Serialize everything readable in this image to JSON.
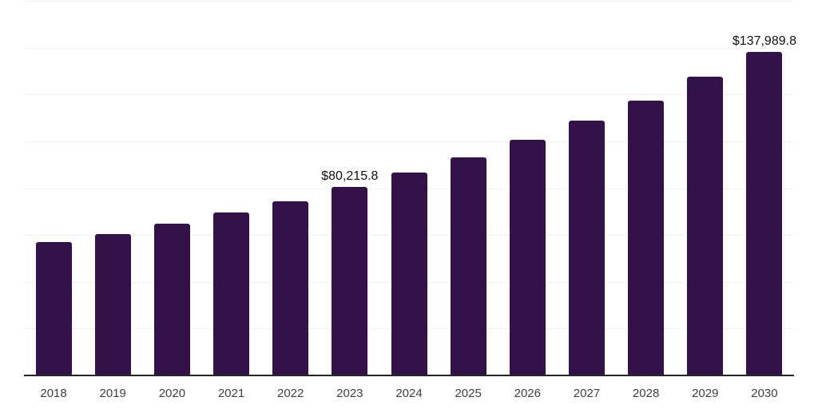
{
  "chart_data": {
    "type": "bar",
    "title": "",
    "xlabel": "",
    "ylabel": "",
    "categories": [
      "2018",
      "2019",
      "2020",
      "2021",
      "2022",
      "2023",
      "2024",
      "2025",
      "2026",
      "2027",
      "2028",
      "2029",
      "2030"
    ],
    "values": [
      56500,
      60200,
      64400,
      69200,
      74100,
      80215.8,
      86200,
      92800,
      100200,
      108600,
      117100,
      127300,
      137989.8
    ],
    "annotations": [
      {
        "index": 5,
        "category": "2023",
        "text": "$80,215.8"
      },
      {
        "index": 12,
        "category": "2030",
        "text": "$137,989.8"
      }
    ],
    "ylim": [
      0,
      160000
    ],
    "grid_step": 20000,
    "grid": "horizontal-only",
    "legend": "none",
    "y_tick_labels_visible": false,
    "bar_color": "#33124a",
    "background_color": "#ffffff",
    "gridline_color": "#f1f1f4",
    "axis_line_color": "#262626",
    "tick_label_color": "#3f3f3f",
    "value_label_color": "#111111"
  }
}
